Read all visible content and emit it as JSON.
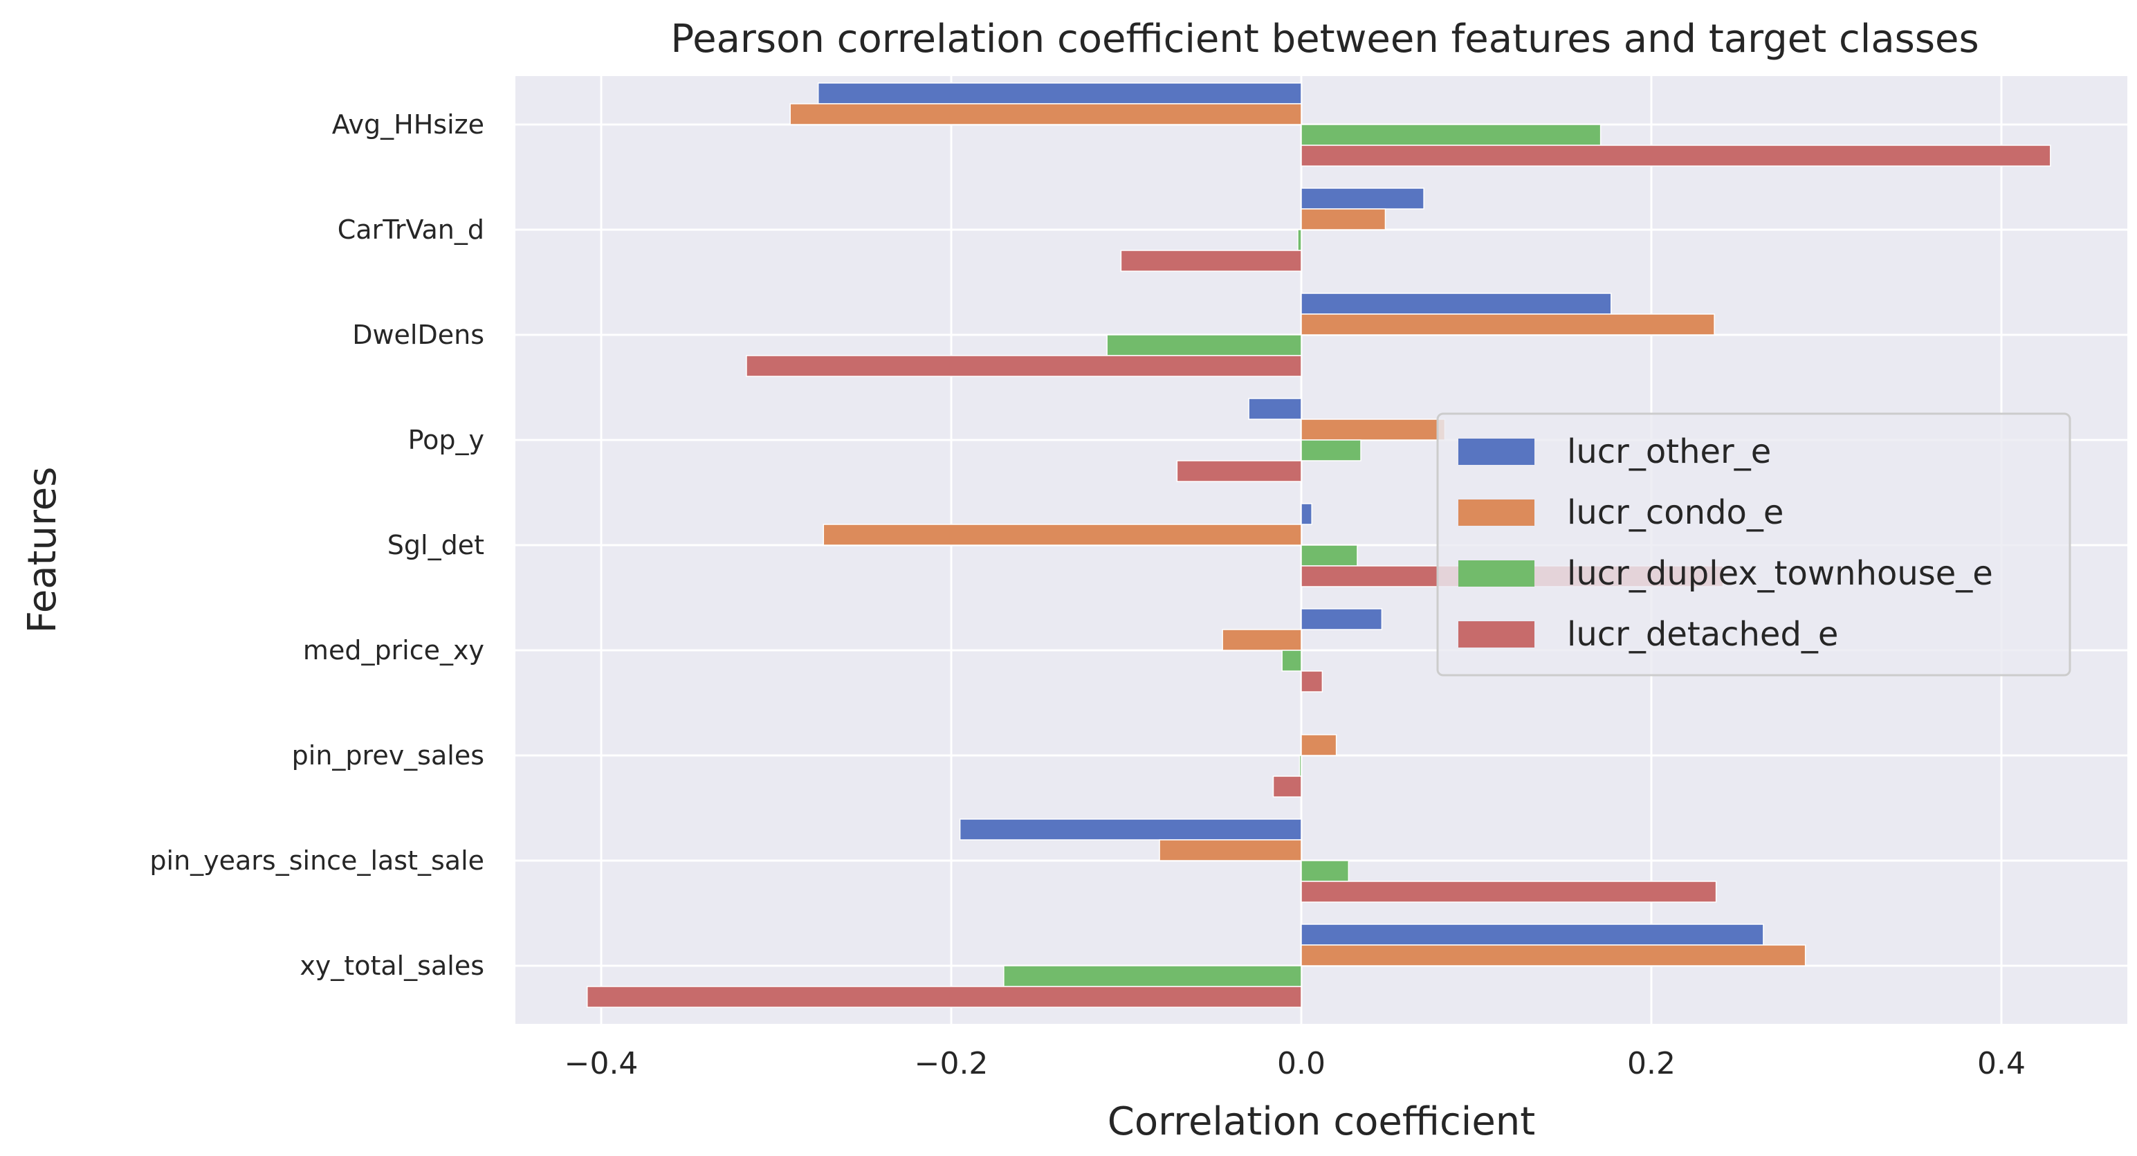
{
  "chart_data": {
    "type": "bar",
    "orientation": "horizontal",
    "title": "Pearson correlation coefficient between features and target classes",
    "xlabel": "Correlation coefficient",
    "ylabel": "Features",
    "xlim": [
      -0.45,
      0.47
    ],
    "xticks": [
      -0.4,
      -0.2,
      0.0,
      0.2,
      0.4
    ],
    "xtick_labels": [
      "−0.4",
      "−0.2",
      "0.0",
      "0.2",
      "0.4"
    ],
    "grid": true,
    "legend_position": "center-right",
    "categories": [
      "Avg_HHsize",
      "CarTrVan_d",
      "DwelDens",
      "Pop_y",
      "Sgl_det",
      "med_price_xy",
      "pin_prev_sales",
      "pin_years_since_last_sale",
      "xy_total_sales"
    ],
    "series": [
      {
        "name": "lucr_other_e",
        "color": "#5875c1",
        "values": [
          -0.276,
          0.07,
          0.177,
          -0.03,
          0.006,
          0.046,
          0.0,
          -0.195,
          0.264
        ]
      },
      {
        "name": "lucr_condo_e",
        "color": "#dc8b5b",
        "values": [
          -0.292,
          0.048,
          0.236,
          0.082,
          -0.273,
          -0.045,
          0.02,
          -0.081,
          0.288
        ]
      },
      {
        "name": "lucr_duplex_townhouse_e",
        "color": "#72bb6b",
        "values": [
          0.171,
          -0.002,
          -0.111,
          0.034,
          0.032,
          -0.011,
          -0.001,
          0.027,
          -0.17
        ]
      },
      {
        "name": "lucr_detached_e",
        "color": "#c76b6b",
        "values": [
          0.428,
          -0.103,
          -0.317,
          -0.071,
          0.241,
          0.012,
          -0.016,
          0.237,
          -0.408
        ]
      }
    ]
  }
}
